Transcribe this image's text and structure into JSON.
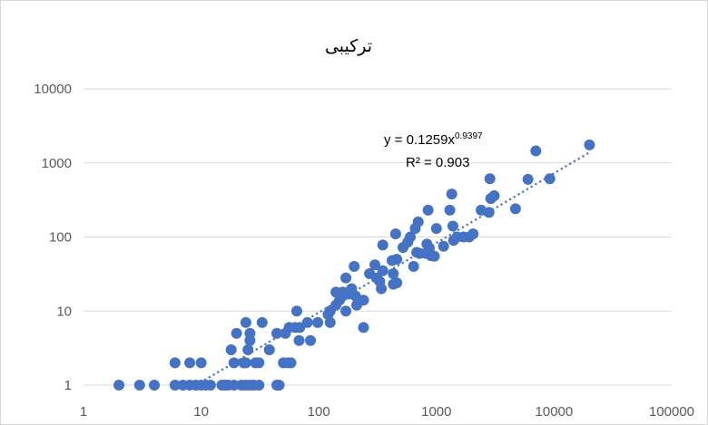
{
  "chart_data": {
    "type": "scatter",
    "title": "ترکیبی",
    "x_scale": "log",
    "y_scale": "log",
    "xlim": [
      1,
      100000
    ],
    "ylim": [
      1,
      10000
    ],
    "x_ticks": [
      1,
      10,
      100,
      1000,
      10000,
      100000
    ],
    "y_ticks": [
      1,
      10,
      100,
      1000,
      10000
    ],
    "x_tick_labels": [
      "1",
      "10",
      "100",
      "1000",
      "10000",
      "100000"
    ],
    "y_tick_labels": [
      "1",
      "10",
      "100",
      "1000",
      "10000"
    ],
    "grid": {
      "horizontal": true,
      "vertical": false
    },
    "legend": "none",
    "colors": {
      "marker": "#4472C4",
      "trendline": "#4472C4",
      "grid": "#d9d9d9",
      "border": "#d9d9d9",
      "text": "#000000",
      "tick_text": "#595959"
    },
    "trendline": {
      "type": "power",
      "coefficient": 0.1259,
      "exponent": 0.9397,
      "x_range": [
        9,
        20000
      ],
      "equation_prefix": "y = 0.1259x",
      "equation_exponent": "0.9397",
      "r2_label": "R² = 0.903"
    },
    "points": [
      [
        2,
        1
      ],
      [
        3,
        1
      ],
      [
        4,
        1
      ],
      [
        6,
        1
      ],
      [
        7,
        1
      ],
      [
        8,
        1
      ],
      [
        9,
        1
      ],
      [
        10,
        1
      ],
      [
        11,
        1
      ],
      [
        12,
        1
      ],
      [
        15,
        1
      ],
      [
        16,
        1
      ],
      [
        17,
        1
      ],
      [
        19,
        1
      ],
      [
        22,
        1
      ],
      [
        24,
        1
      ],
      [
        26,
        1
      ],
      [
        28,
        1
      ],
      [
        31,
        1
      ],
      [
        44,
        1
      ],
      [
        46,
        1
      ],
      [
        6,
        2
      ],
      [
        8,
        2
      ],
      [
        10,
        2
      ],
      [
        19,
        2
      ],
      [
        23,
        2
      ],
      [
        24,
        2
      ],
      [
        29,
        2
      ],
      [
        31,
        2
      ],
      [
        50,
        2
      ],
      [
        55,
        2
      ],
      [
        58,
        2
      ],
      [
        18,
        3
      ],
      [
        25,
        3
      ],
      [
        38,
        3
      ],
      [
        20,
        5
      ],
      [
        26,
        5
      ],
      [
        44,
        5
      ],
      [
        52,
        5
      ],
      [
        26,
        4
      ],
      [
        68,
        4
      ],
      [
        85,
        4
      ],
      [
        24,
        7
      ],
      [
        33,
        7
      ],
      [
        63,
        6
      ],
      [
        56,
        6
      ],
      [
        69,
        6
      ],
      [
        80,
        7
      ],
      [
        98,
        7
      ],
      [
        125,
        7
      ],
      [
        240,
        6
      ],
      [
        65,
        10
      ],
      [
        120,
        9
      ],
      [
        125,
        10
      ],
      [
        140,
        12
      ],
      [
        150,
        14
      ],
      [
        160,
        16
      ],
      [
        170,
        10
      ],
      [
        190,
        20
      ],
      [
        140,
        18
      ],
      [
        160,
        18
      ],
      [
        180,
        17
      ],
      [
        205,
        16
      ],
      [
        210,
        12
      ],
      [
        240,
        14
      ],
      [
        170,
        28
      ],
      [
        200,
        40
      ],
      [
        270,
        32
      ],
      [
        310,
        28
      ],
      [
        330,
        25
      ],
      [
        300,
        42
      ],
      [
        350,
        35
      ],
      [
        340,
        20
      ],
      [
        430,
        32
      ],
      [
        420,
        48
      ],
      [
        460,
        50
      ],
      [
        430,
        23
      ],
      [
        460,
        24
      ],
      [
        350,
        78
      ],
      [
        450,
        110
      ],
      [
        520,
        72
      ],
      [
        570,
        85
      ],
      [
        600,
        100
      ],
      [
        640,
        40
      ],
      [
        660,
        130
      ],
      [
        680,
        62
      ],
      [
        700,
        160
      ],
      [
        720,
        60
      ],
      [
        810,
        60
      ],
      [
        830,
        80
      ],
      [
        850,
        230
      ],
      [
        870,
        70
      ],
      [
        900,
        56
      ],
      [
        960,
        55
      ],
      [
        1000,
        130
      ],
      [
        1150,
        75
      ],
      [
        1300,
        230
      ],
      [
        1350,
        380
      ],
      [
        1380,
        140
      ],
      [
        1400,
        90
      ],
      [
        1500,
        100
      ],
      [
        1700,
        100
      ],
      [
        1900,
        100
      ],
      [
        2050,
        110
      ],
      [
        2400,
        230
      ],
      [
        2800,
        215
      ],
      [
        2850,
        610
      ],
      [
        2900,
        330
      ],
      [
        3100,
        360
      ],
      [
        4700,
        240
      ],
      [
        6000,
        600
      ],
      [
        7000,
        1450
      ],
      [
        9200,
        610
      ],
      [
        20000,
        1750
      ]
    ]
  }
}
